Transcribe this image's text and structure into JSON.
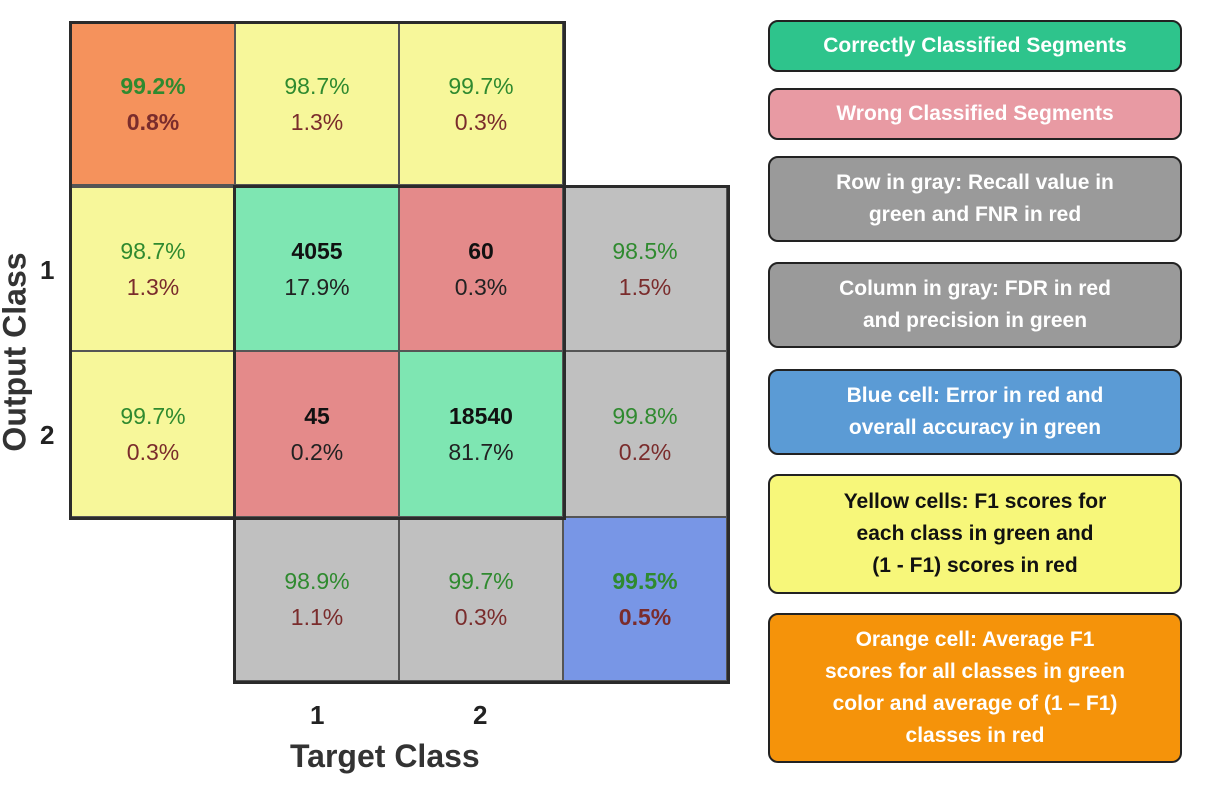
{
  "matrix": {
    "corner": {
      "green": "99.2%",
      "red": "0.8%"
    },
    "top_f1": [
      {
        "green": "98.7%",
        "red": "1.3%"
      },
      {
        "green": "99.7%",
        "red": "0.3%"
      }
    ],
    "left_f1": [
      {
        "green": "98.7%",
        "red": "1.3%"
      },
      {
        "green": "99.7%",
        "red": "0.3%"
      }
    ],
    "cells": [
      [
        {
          "count": "4055",
          "pct": "17.9%"
        },
        {
          "count": "60",
          "pct": "0.3%"
        }
      ],
      [
        {
          "count": "45",
          "pct": "0.2%"
        },
        {
          "count": "18540",
          "pct": "81.7%"
        }
      ]
    ],
    "row_summary": [
      {
        "green": "98.5%",
        "red": "1.5%"
      },
      {
        "green": "99.8%",
        "red": "0.2%"
      }
    ],
    "col_summary": [
      {
        "green": "98.9%",
        "red": "1.1%"
      },
      {
        "green": "99.7%",
        "red": "0.3%"
      }
    ],
    "overall": {
      "green": "99.5%",
      "red": "0.5%"
    }
  },
  "axes": {
    "x_ticks": [
      "1",
      "2"
    ],
    "y_ticks": [
      "1",
      "2"
    ],
    "x_title": "Target Class",
    "y_title": "Output Class"
  },
  "colors": {
    "orange_cell": "#f5925c",
    "yellow_cell": "#f7f79a",
    "correct_cell": "#7ee6b2",
    "wrong_cell": "#e48a8a",
    "gray_cell": "#c0c0c0",
    "blue_cell": "#7896e6"
  },
  "legend": [
    {
      "lines": [
        "Correctly Classified Segments"
      ],
      "color": "#2ec48c"
    },
    {
      "lines": [
        "Wrong Classified Segments"
      ],
      "color": "#e89aa3"
    },
    {
      "lines": [
        "Row in gray: Recall value in",
        "green and FNR in red"
      ],
      "color": "#9a9a9a"
    },
    {
      "lines": [
        "Column in gray: FDR in red",
        "and precision in green"
      ],
      "color": "#9a9a9a"
    },
    {
      "lines": [
        "Blue cell: Error in red and",
        "overall accuracy in green"
      ],
      "color": "#5b9bd5"
    },
    {
      "lines": [
        "Yellow cells: F1 scores for",
        "each class in green and",
        "(1 - F1) scores in red"
      ],
      "color": "#f7f77a"
    },
    {
      "lines": [
        "Orange cell: Average F1",
        "scores for all classes in green",
        "color and average of (1 – F1)",
        "classes in red"
      ],
      "color": "#f5930a"
    }
  ]
}
